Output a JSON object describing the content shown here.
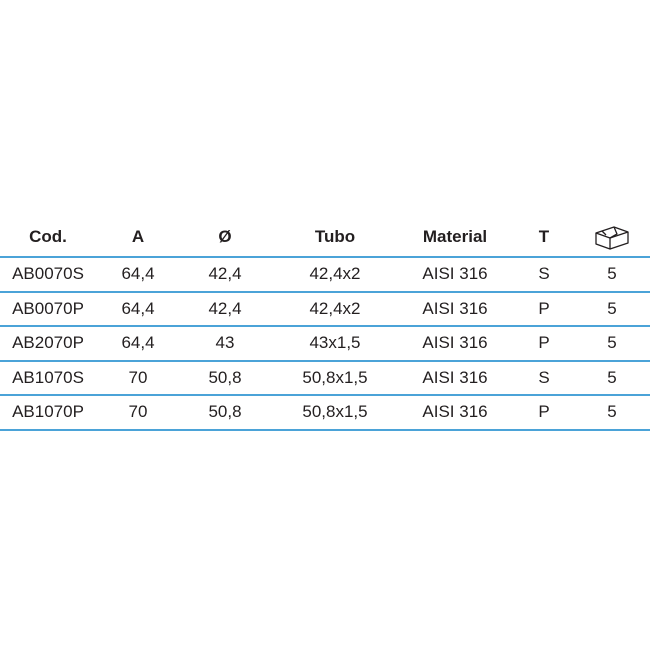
{
  "table": {
    "headers": {
      "cod": "Cod.",
      "a": "A",
      "diameter": "Ø",
      "tubo": "Tubo",
      "material": "Material",
      "t": "T",
      "box_icon": "box-icon"
    },
    "rows": [
      {
        "cod": "AB0070S",
        "a": "64,4",
        "diameter": "42,4",
        "tubo": "42,4x2",
        "material": "AISI 316",
        "t": "S",
        "qty": "5"
      },
      {
        "cod": "AB0070P",
        "a": "64,4",
        "diameter": "42,4",
        "tubo": "42,4x2",
        "material": "AISI 316",
        "t": "P",
        "qty": "5"
      },
      {
        "cod": "AB2070P",
        "a": "64,4",
        "diameter": "43",
        "tubo": "43x1,5",
        "material": "AISI 316",
        "t": "P",
        "qty": "5"
      },
      {
        "cod": "AB1070S",
        "a": "70",
        "diameter": "50,8",
        "tubo": "50,8x1,5",
        "material": "AISI 316",
        "t": "S",
        "qty": "5"
      },
      {
        "cod": "AB1070P",
        "a": "70",
        "diameter": "50,8",
        "tubo": "50,8x1,5",
        "material": "AISI 316",
        "t": "P",
        "qty": "5"
      }
    ]
  },
  "colors": {
    "divider": "#4ba3d8",
    "text": "#231f20"
  }
}
